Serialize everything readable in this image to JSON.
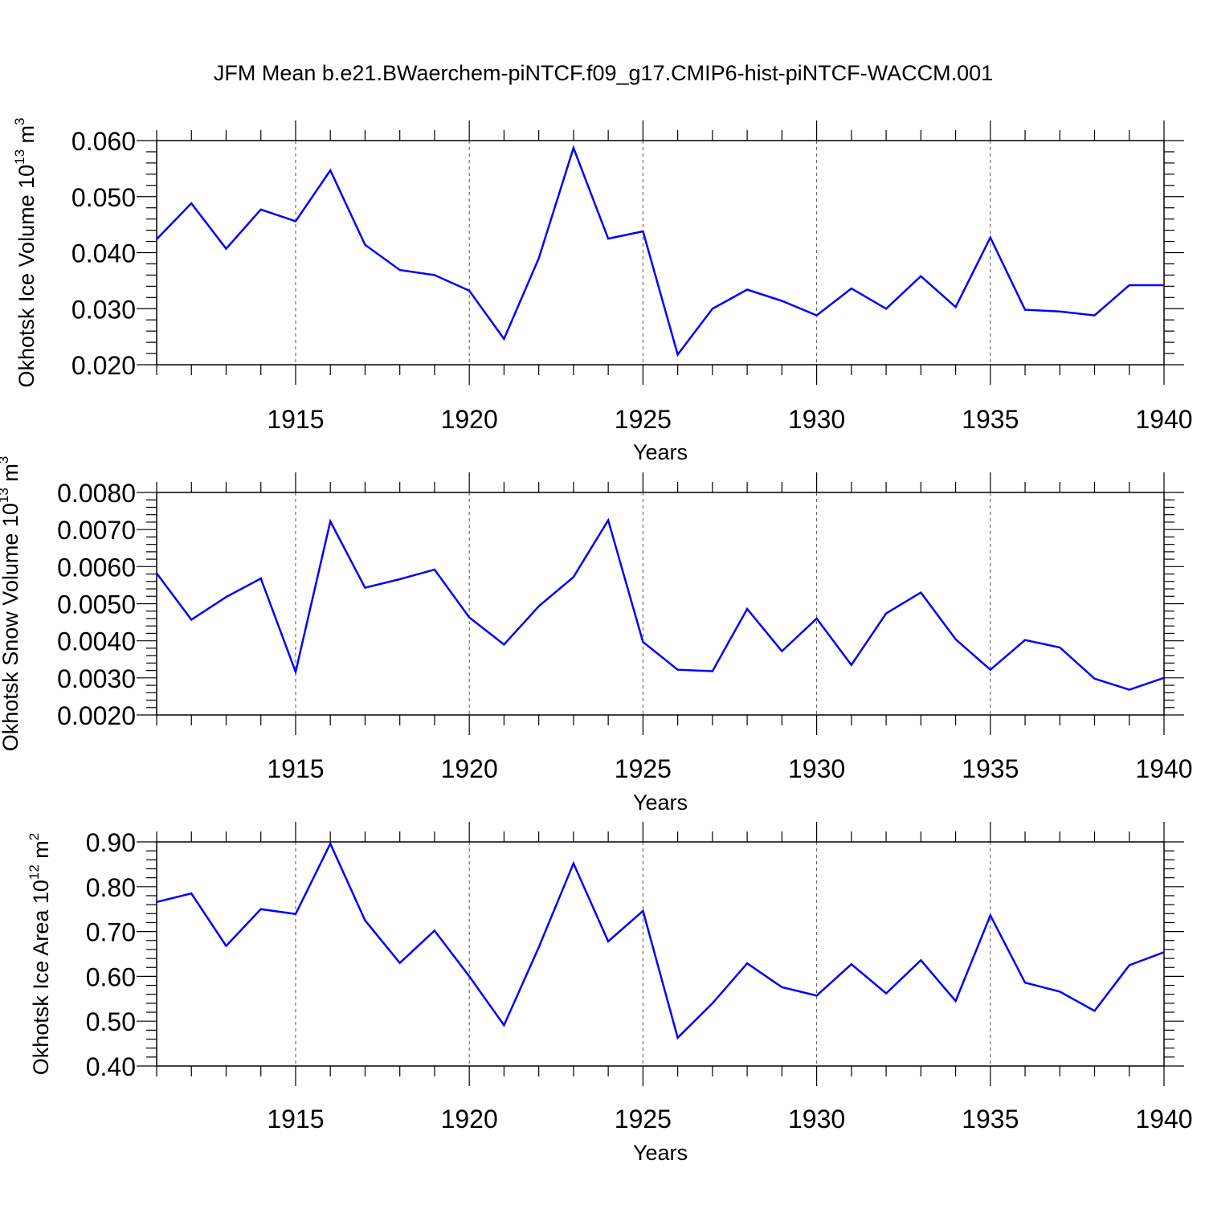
{
  "title": "JFM Mean b.e21.BWaerchem-piNTCF.f09_g17.CMIP6-hist-piNTCF-WACCM.001",
  "line_color": "#0000ff",
  "chart_data": [
    {
      "type": "line",
      "xlabel": "Years",
      "ylabel_main": "Okhotsk Ice Volume 10",
      "ylabel_exp": "13",
      "ylabel_unit": " m",
      "ylabel_unit_exp": "3",
      "xlim": [
        1911,
        1940
      ],
      "ylim": [
        0.02,
        0.06
      ],
      "yticks": [
        0.02,
        0.03,
        0.04,
        0.05,
        0.06
      ],
      "ytick_labels": [
        "0.020",
        "0.030",
        "0.040",
        "0.050",
        "0.060"
      ],
      "xticks": [
        1915,
        1920,
        1925,
        1930,
        1935,
        1940
      ],
      "xtick_labels": [
        "1915",
        "1920",
        "1925",
        "1930",
        "1935",
        "1940"
      ],
      "x": [
        1911,
        1912,
        1913,
        1914,
        1915,
        1916,
        1917,
        1918,
        1919,
        1920,
        1921,
        1922,
        1923,
        1924,
        1925,
        1926,
        1927,
        1928,
        1929,
        1930,
        1931,
        1932,
        1933,
        1934,
        1935,
        1936,
        1937,
        1938,
        1939,
        1940
      ],
      "values": [
        0.0424,
        0.0488,
        0.0407,
        0.0477,
        0.0456,
        0.0547,
        0.0414,
        0.0369,
        0.036,
        0.0332,
        0.0246,
        0.039,
        0.0587,
        0.0425,
        0.0438,
        0.0218,
        0.03,
        0.0334,
        0.0314,
        0.0288,
        0.0336,
        0.03,
        0.0358,
        0.0303,
        0.0427,
        0.0298,
        0.0295,
        0.0288,
        0.0342,
        0.0342
      ]
    },
    {
      "type": "line",
      "xlabel": "Years",
      "ylabel_main": "Okhotsk Snow Volume 10",
      "ylabel_exp": "13",
      "ylabel_unit": " m",
      "ylabel_unit_exp": "3",
      "xlim": [
        1911,
        1940
      ],
      "ylim": [
        0.002,
        0.008
      ],
      "yticks": [
        0.002,
        0.003,
        0.004,
        0.005,
        0.006,
        0.007,
        0.008
      ],
      "ytick_labels": [
        "0.0020",
        "0.0030",
        "0.0040",
        "0.0050",
        "0.0060",
        "0.0070",
        "0.0080"
      ],
      "xticks": [
        1915,
        1920,
        1925,
        1930,
        1935,
        1940
      ],
      "xtick_labels": [
        "1915",
        "1920",
        "1925",
        "1930",
        "1935",
        "1940"
      ],
      "x": [
        1911,
        1912,
        1913,
        1914,
        1915,
        1916,
        1917,
        1918,
        1919,
        1920,
        1921,
        1922,
        1923,
        1924,
        1925,
        1926,
        1927,
        1928,
        1929,
        1930,
        1931,
        1932,
        1933,
        1934,
        1935,
        1936,
        1937,
        1938,
        1939,
        1940
      ],
      "values": [
        0.00582,
        0.00457,
        0.00518,
        0.00568,
        0.00316,
        0.00722,
        0.00543,
        0.00566,
        0.00592,
        0.00463,
        0.0039,
        0.00493,
        0.00572,
        0.00725,
        0.00397,
        0.00322,
        0.00318,
        0.00486,
        0.00372,
        0.0046,
        0.00335,
        0.00474,
        0.0053,
        0.00404,
        0.00322,
        0.00402,
        0.00382,
        0.00298,
        0.00268,
        0.003
      ]
    },
    {
      "type": "line",
      "xlabel": "Years",
      "ylabel_main": "Okhotsk Ice Area 10",
      "ylabel_exp": "12",
      "ylabel_unit": " m",
      "ylabel_unit_exp": "2",
      "xlim": [
        1911,
        1940
      ],
      "ylim": [
        0.4,
        0.9
      ],
      "yticks": [
        0.4,
        0.5,
        0.6,
        0.7,
        0.8,
        0.9
      ],
      "ytick_labels": [
        "0.40",
        "0.50",
        "0.60",
        "0.70",
        "0.80",
        "0.90"
      ],
      "xticks": [
        1915,
        1920,
        1925,
        1930,
        1935,
        1940
      ],
      "xtick_labels": [
        "1915",
        "1920",
        "1925",
        "1930",
        "1935",
        "1940"
      ],
      "x": [
        1911,
        1912,
        1913,
        1914,
        1915,
        1916,
        1917,
        1918,
        1919,
        1920,
        1921,
        1922,
        1923,
        1924,
        1925,
        1926,
        1927,
        1928,
        1929,
        1930,
        1931,
        1932,
        1933,
        1934,
        1935,
        1936,
        1937,
        1938,
        1939,
        1940
      ],
      "values": [
        0.766,
        0.785,
        0.668,
        0.75,
        0.739,
        0.896,
        0.725,
        0.63,
        0.702,
        0.6,
        0.491,
        0.665,
        0.852,
        0.678,
        0.746,
        0.463,
        0.54,
        0.629,
        0.576,
        0.557,
        0.627,
        0.562,
        0.636,
        0.545,
        0.736,
        0.586,
        0.566,
        0.523,
        0.625,
        0.654
      ]
    }
  ]
}
